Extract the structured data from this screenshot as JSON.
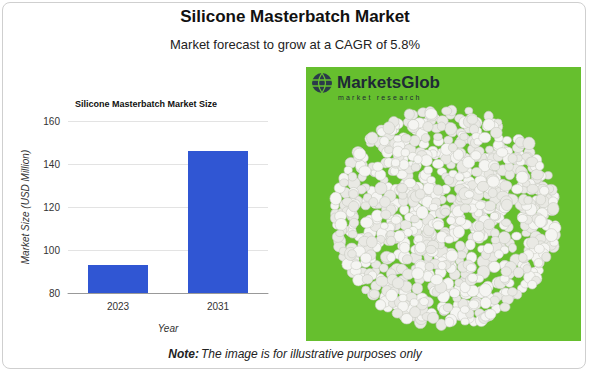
{
  "page": {
    "title": "Silicone Masterbatch Market",
    "subtitle": "Market forecast to grow at a CAGR of 5.8%",
    "logo": "MarketsGlob",
    "logo_tagline": "market research",
    "note_label": "Note:",
    "note": "The image is for illustrative purposes only"
  },
  "chart_data": {
    "type": "bar",
    "title": "Silicone Masterbatch Market Size",
    "x_label": "Year",
    "y_label": "Market Size (USD Million)",
    "categories": [
      "2023",
      "2031"
    ],
    "values": [
      93,
      146
    ],
    "color": "#3056d3",
    "ylim": [
      80,
      160
    ],
    "yticks": [
      80,
      100,
      120,
      140,
      160
    ],
    "grid": true
  }
}
